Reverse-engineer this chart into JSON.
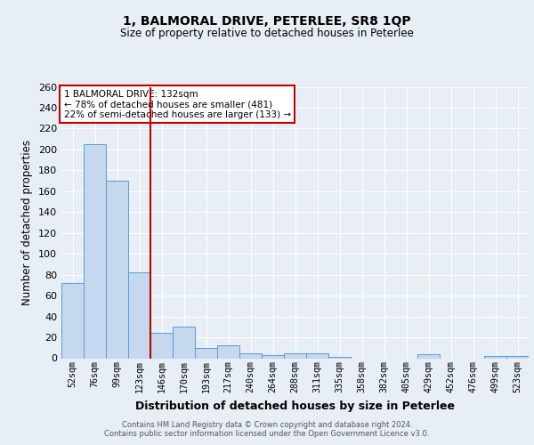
{
  "title1": "1, BALMORAL DRIVE, PETERLEE, SR8 1QP",
  "title2": "Size of property relative to detached houses in Peterlee",
  "xlabel": "Distribution of detached houses by size in Peterlee",
  "ylabel": "Number of detached properties",
  "categories": [
    "52sqm",
    "76sqm",
    "99sqm",
    "123sqm",
    "146sqm",
    "170sqm",
    "193sqm",
    "217sqm",
    "240sqm",
    "264sqm",
    "288sqm",
    "311sqm",
    "335sqm",
    "358sqm",
    "382sqm",
    "405sqm",
    "429sqm",
    "452sqm",
    "476sqm",
    "499sqm",
    "523sqm"
  ],
  "values": [
    72,
    205,
    170,
    82,
    24,
    30,
    10,
    12,
    5,
    3,
    5,
    5,
    1,
    0,
    0,
    0,
    4,
    0,
    0,
    2,
    2
  ],
  "bar_color": "#c5d8ed",
  "bar_edge_color": "#5b9bd5",
  "vline_color": "#c00000",
  "annotation_text": "1 BALMORAL DRIVE: 132sqm\n← 78% of detached houses are smaller (481)\n22% of semi-detached houses are larger (133) →",
  "annotation_box_color": "#ffffff",
  "annotation_box_edge": "#c00000",
  "footer1": "Contains HM Land Registry data © Crown copyright and database right 2024.",
  "footer2": "Contains public sector information licensed under the Open Government Licence v3.0.",
  "bg_color": "#e8eef6",
  "plot_bg_color": "#e8eef6",
  "ylim": [
    0,
    260
  ],
  "yticks": [
    0,
    20,
    40,
    60,
    80,
    100,
    120,
    140,
    160,
    180,
    200,
    220,
    240,
    260
  ]
}
